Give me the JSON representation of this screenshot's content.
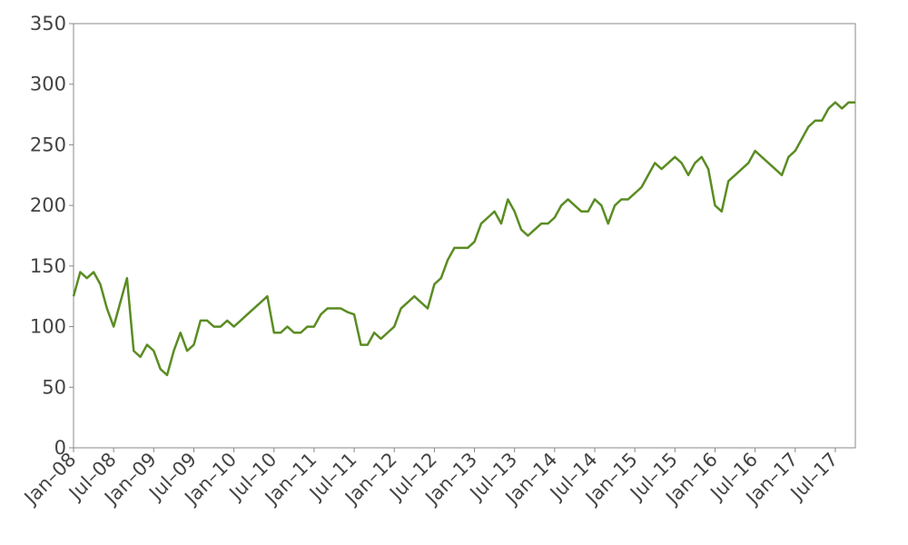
{
  "chart_data": {
    "type": "line",
    "color": "#5a8c23",
    "x": [
      "2008-01",
      "2008-02",
      "2008-03",
      "2008-04",
      "2008-05",
      "2008-06",
      "2008-07",
      "2008-08",
      "2008-09",
      "2008-10",
      "2008-11",
      "2008-12",
      "2009-01",
      "2009-02",
      "2009-03",
      "2009-04",
      "2009-05",
      "2009-06",
      "2009-07",
      "2009-08",
      "2009-09",
      "2009-10",
      "2009-11",
      "2009-12",
      "2010-01",
      "2010-02",
      "2010-03",
      "2010-04",
      "2010-05",
      "2010-06",
      "2010-07",
      "2010-08",
      "2010-09",
      "2010-10",
      "2010-11",
      "2010-12",
      "2011-01",
      "2011-02",
      "2011-03",
      "2011-04",
      "2011-05",
      "2011-06",
      "2011-07",
      "2011-08",
      "2011-09",
      "2011-10",
      "2011-11",
      "2011-12",
      "2012-01",
      "2012-02",
      "2012-03",
      "2012-04",
      "2012-05",
      "2012-06",
      "2012-07",
      "2012-08",
      "2012-09",
      "2012-10",
      "2012-11",
      "2012-12",
      "2013-01",
      "2013-02",
      "2013-03",
      "2013-04",
      "2013-05",
      "2013-06",
      "2013-07",
      "2013-08",
      "2013-09",
      "2013-10",
      "2013-11",
      "2013-12",
      "2014-01",
      "2014-02",
      "2014-03",
      "2014-04",
      "2014-05",
      "2014-06",
      "2014-07",
      "2014-08",
      "2014-09",
      "2014-10",
      "2014-11",
      "2014-12",
      "2015-01",
      "2015-02",
      "2015-03",
      "2015-04",
      "2015-05",
      "2015-06",
      "2015-07",
      "2015-08",
      "2015-09",
      "2015-10",
      "2015-11",
      "2015-12",
      "2016-01",
      "2016-02",
      "2016-03",
      "2016-04",
      "2016-05",
      "2016-06",
      "2016-07",
      "2016-08",
      "2016-09",
      "2016-10",
      "2016-11",
      "2016-12",
      "2017-01",
      "2017-02",
      "2017-03",
      "2017-04",
      "2017-05",
      "2017-06",
      "2017-07",
      "2017-08",
      "2017-09",
      "2017-10"
    ],
    "values": [
      125,
      145,
      140,
      145,
      135,
      115,
      100,
      120,
      140,
      80,
      75,
      85,
      80,
      65,
      60,
      80,
      95,
      80,
      85,
      105,
      105,
      100,
      100,
      105,
      100,
      105,
      110,
      115,
      120,
      125,
      95,
      95,
      100,
      95,
      95,
      100,
      100,
      110,
      115,
      115,
      115,
      112,
      110,
      85,
      85,
      95,
      90,
      95,
      100,
      115,
      120,
      125,
      120,
      115,
      135,
      140,
      155,
      165,
      165,
      165,
      170,
      185,
      190,
      195,
      185,
      205,
      195,
      180,
      175,
      180,
      185,
      185,
      190,
      200,
      205,
      200,
      195,
      195,
      205,
      200,
      185,
      200,
      205,
      205,
      210,
      215,
      225,
      235,
      230,
      235,
      240,
      235,
      225,
      235,
      240,
      230,
      200,
      195,
      220,
      225,
      230,
      235,
      245,
      240,
      235,
      230,
      225,
      240,
      245,
      255,
      265,
      270,
      270,
      280,
      285,
      280,
      285,
      285
    ],
    "xlim": [
      "2008-01",
      "2017-10"
    ],
    "xticks": [
      {
        "value": "2008-01",
        "label": "Jan–08"
      },
      {
        "value": "2008-07",
        "label": "Jul–08"
      },
      {
        "value": "2009-01",
        "label": "Jan–09"
      },
      {
        "value": "2009-07",
        "label": "Jul–09"
      },
      {
        "value": "2010-01",
        "label": "Jan–10"
      },
      {
        "value": "2010-07",
        "label": "Jul–10"
      },
      {
        "value": "2011-01",
        "label": "Jan–11"
      },
      {
        "value": "2011-07",
        "label": "Jul–11"
      },
      {
        "value": "2012-01",
        "label": "Jan–12"
      },
      {
        "value": "2012-07",
        "label": "Jul–12"
      },
      {
        "value": "2013-01",
        "label": "Jan–13"
      },
      {
        "value": "2013-07",
        "label": "Jul–13"
      },
      {
        "value": "2014-01",
        "label": "Jan–14"
      },
      {
        "value": "2014-07",
        "label": "Jul–14"
      },
      {
        "value": "2015-01",
        "label": "Jan–15"
      },
      {
        "value": "2015-07",
        "label": "Jul–15"
      },
      {
        "value": "2016-01",
        "label": "Jan–16"
      },
      {
        "value": "2016-07",
        "label": "Jul–16"
      },
      {
        "value": "2017-01",
        "label": "Jan–17"
      },
      {
        "value": "2017-07",
        "label": "Jul–17"
      }
    ],
    "ylim": [
      0,
      350
    ],
    "yticks": [
      0,
      50,
      100,
      150,
      200,
      250,
      300,
      350
    ],
    "grid": false
  }
}
